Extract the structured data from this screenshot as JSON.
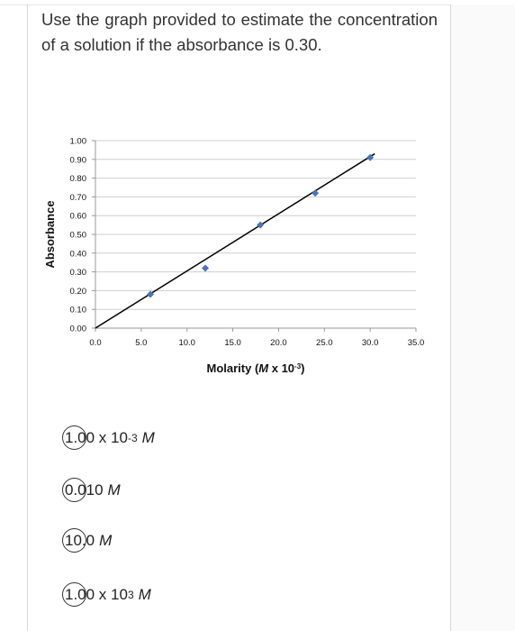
{
  "question": {
    "text": "Use the graph provided to estimate the concentration of a solution if the absorbance is 0.30."
  },
  "chart_data": {
    "type": "scatter",
    "xlabel_prefix": "Molarity (",
    "xlabel_var": "M",
    "xlabel_mid": " x 10",
    "xlabel_exp": "-3",
    "xlabel_suffix": ")",
    "ylabel": "Absorbance",
    "xlim": [
      0,
      35
    ],
    "ylim": [
      0,
      1.0
    ],
    "xticks": [
      "0.0",
      "5.0",
      "10.0",
      "15.0",
      "20.0",
      "25.0",
      "30.0",
      "35.0"
    ],
    "yticks": [
      "0.00",
      "0.10",
      "0.20",
      "0.30",
      "0.40",
      "0.50",
      "0.60",
      "0.70",
      "0.80",
      "0.90",
      "1.00"
    ],
    "points": [
      {
        "x": 6.0,
        "y": 0.18
      },
      {
        "x": 12.0,
        "y": 0.32
      },
      {
        "x": 18.0,
        "y": 0.55
      },
      {
        "x": 24.0,
        "y": 0.72
      },
      {
        "x": 30.0,
        "y": 0.91
      }
    ],
    "trendline": {
      "x": [
        0,
        30.5
      ],
      "y": [
        0,
        0.93
      ]
    },
    "grid": true,
    "marker_color": "#4a76b8",
    "line_color": "#000000"
  },
  "options": [
    {
      "lead": "1.00 x 10",
      "exp": "-3",
      "unit": "M"
    },
    {
      "lead": "0.010",
      "exp": "",
      "unit": "M"
    },
    {
      "lead": "10.0",
      "exp": "",
      "unit": "M"
    },
    {
      "lead": "1.00 x 10",
      "exp": "3",
      "unit": "M"
    }
  ]
}
